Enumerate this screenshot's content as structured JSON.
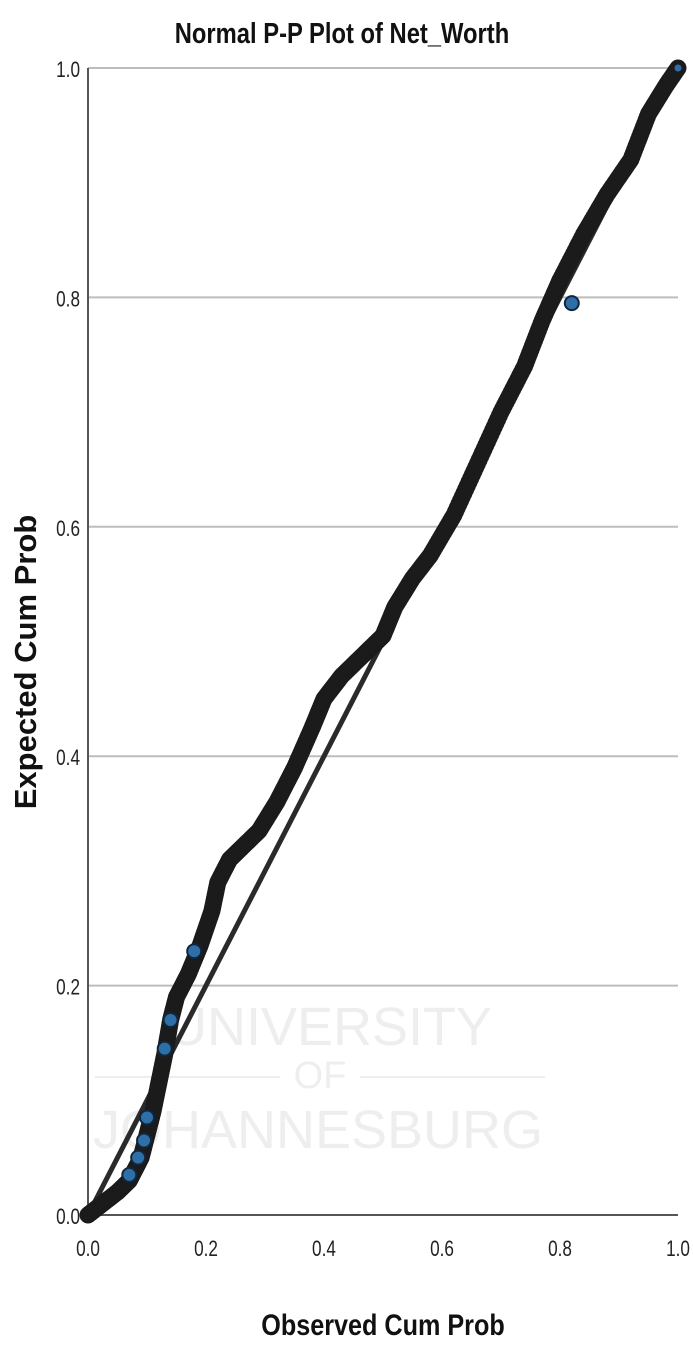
{
  "chart_data": {
    "type": "scatter",
    "title": "Normal P-P Plot of Net_Worth",
    "xlabel": "Observed Cum Prob",
    "ylabel": "Expected Cum Prob",
    "xlim": [
      0.0,
      1.0
    ],
    "ylim": [
      0.0,
      1.0
    ],
    "xticks": [
      "0.0",
      "0.2",
      "0.4",
      "0.6",
      "0.8",
      "1.0"
    ],
    "yticks": [
      "0.0",
      "0.2",
      "0.4",
      "0.6",
      "0.8",
      "1.0"
    ],
    "grid": "horizontal",
    "legend": "none",
    "reference_line": {
      "from": [
        0,
        0
      ],
      "to": [
        1,
        1
      ]
    },
    "watermark_text": [
      "UNIVERSITY",
      "OF",
      "JOHANNESBURG"
    ],
    "colors": {
      "point_fill": "#2f6fa8",
      "point_outline": "#1b1b1b",
      "reference_line": "#2a2a2a",
      "grid": "#bdbdbd",
      "axis": "#555555",
      "watermark": "#eeeeee"
    },
    "curve_anchors": [
      [
        0.0,
        0.0
      ],
      [
        0.02,
        0.008
      ],
      [
        0.05,
        0.02
      ],
      [
        0.07,
        0.03
      ],
      [
        0.09,
        0.05
      ],
      [
        0.1,
        0.07
      ],
      [
        0.11,
        0.09
      ],
      [
        0.12,
        0.115
      ],
      [
        0.13,
        0.14
      ],
      [
        0.14,
        0.17
      ],
      [
        0.15,
        0.19
      ],
      [
        0.17,
        0.21
      ],
      [
        0.19,
        0.235
      ],
      [
        0.21,
        0.265
      ],
      [
        0.22,
        0.29
      ],
      [
        0.24,
        0.31
      ],
      [
        0.26,
        0.32
      ],
      [
        0.29,
        0.335
      ],
      [
        0.32,
        0.36
      ],
      [
        0.35,
        0.39
      ],
      [
        0.38,
        0.425
      ],
      [
        0.4,
        0.45
      ],
      [
        0.43,
        0.47
      ],
      [
        0.47,
        0.49
      ],
      [
        0.5,
        0.505
      ],
      [
        0.52,
        0.53
      ],
      [
        0.55,
        0.555
      ],
      [
        0.58,
        0.575
      ],
      [
        0.62,
        0.61
      ],
      [
        0.66,
        0.655
      ],
      [
        0.7,
        0.7
      ],
      [
        0.74,
        0.74
      ],
      [
        0.77,
        0.78
      ],
      [
        0.8,
        0.815
      ],
      [
        0.84,
        0.855
      ],
      [
        0.88,
        0.89
      ],
      [
        0.92,
        0.92
      ],
      [
        0.95,
        0.96
      ],
      [
        0.98,
        0.985
      ],
      [
        1.0,
        1.0
      ]
    ],
    "highlighted_points": [
      [
        0.07,
        0.035
      ],
      [
        0.085,
        0.05
      ],
      [
        0.095,
        0.065
      ],
      [
        0.1,
        0.085
      ],
      [
        0.13,
        0.145
      ],
      [
        0.14,
        0.17
      ],
      [
        0.18,
        0.23
      ],
      [
        0.82,
        0.795
      ]
    ]
  }
}
